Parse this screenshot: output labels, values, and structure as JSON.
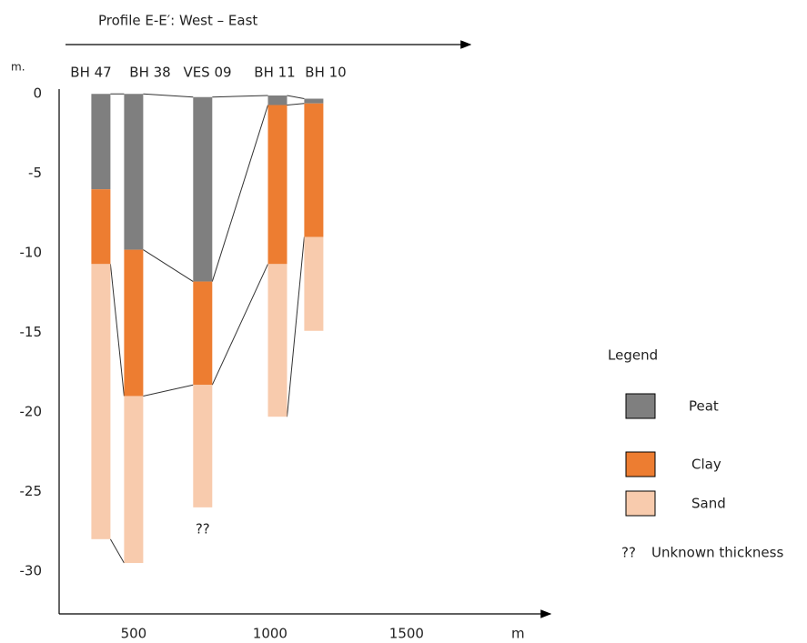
{
  "chart_data": {
    "type": "borehole_profile",
    "title": "Profile E-E′: West – East",
    "y_label": "m.",
    "x_label": "m",
    "xlim": [
      227,
      2027
    ],
    "xticks": [
      500,
      1000,
      1500
    ],
    "ylim": [
      -32.7,
      0.3
    ],
    "yticks": [
      0,
      -5,
      -10,
      -15,
      -20,
      -25,
      -30
    ],
    "legend_title": "Legend",
    "series": [
      {
        "name": "Peat",
        "color": "#7f7f7f"
      },
      {
        "name": "Clay",
        "color": "#ed7d31"
      },
      {
        "name": "Sand",
        "color": "#f8cbad"
      }
    ],
    "note_symbol": "??",
    "note_text": "Unknown thickness",
    "boreholes": [
      {
        "name": "BH 47",
        "x": 380,
        "layers": [
          [
            0,
            -6
          ],
          [
            -6,
            -10.7
          ],
          [
            -10.7,
            -28
          ]
        ]
      },
      {
        "name": "BH 38",
        "x": 500,
        "layers": [
          [
            0,
            -9.8
          ],
          [
            -9.8,
            -19
          ],
          [
            -19,
            -29.5
          ]
        ]
      },
      {
        "name": "VES 09",
        "x": 753,
        "layers": [
          [
            -0.2,
            -11.8
          ],
          [
            -11.8,
            -18.3
          ],
          [
            -18.3,
            -26
          ]
        ],
        "note": "??"
      },
      {
        "name": "BH 11",
        "x": 1027,
        "layers": [
          [
            -0.1,
            -0.7
          ],
          [
            -0.7,
            -10.7
          ],
          [
            -10.7,
            -20.3
          ]
        ]
      },
      {
        "name": "BH 10",
        "x": 1160,
        "layers": [
          [
            -0.3,
            -0.6
          ],
          [
            -0.6,
            -9
          ],
          [
            -9,
            -14.9
          ]
        ]
      }
    ]
  }
}
